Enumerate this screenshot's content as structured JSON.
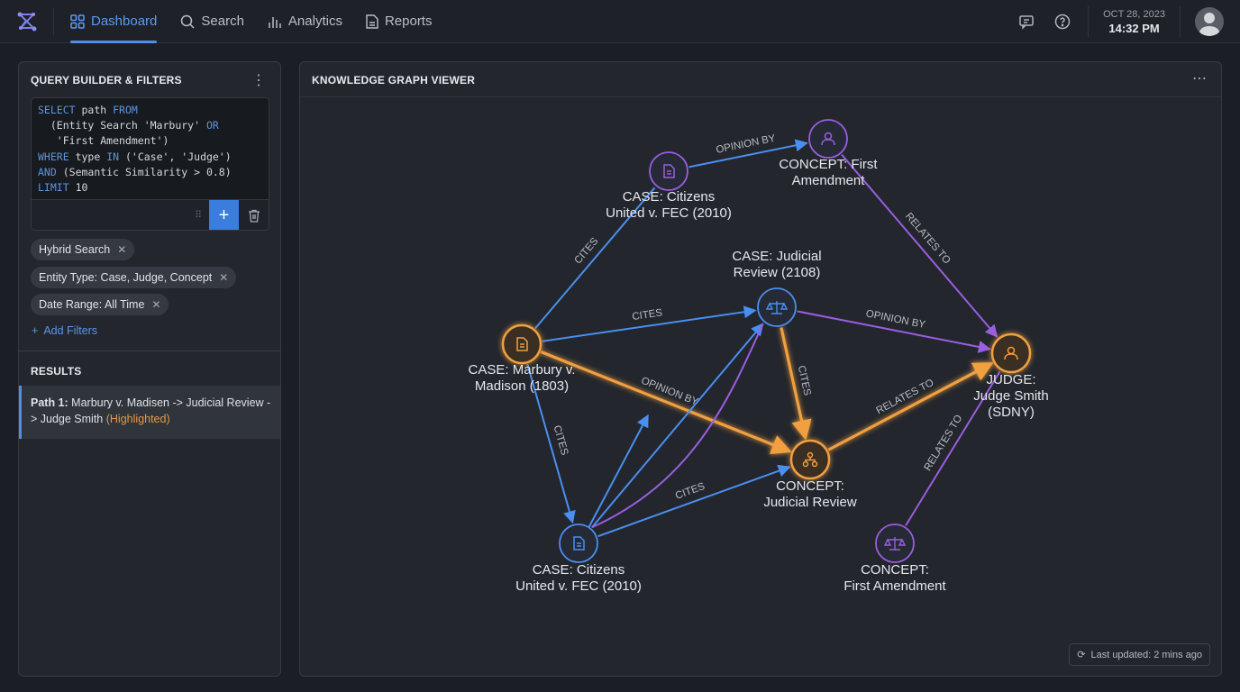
{
  "nav": {
    "items": [
      {
        "label": "Dashboard",
        "icon": "grid-icon",
        "active": true
      },
      {
        "label": "Search",
        "icon": "search-icon"
      },
      {
        "label": "Analytics",
        "icon": "bar-chart-icon"
      },
      {
        "label": "Reports",
        "icon": "document-icon"
      }
    ]
  },
  "header": {
    "date": "OCT 28, 2023",
    "time": "14:32 PM"
  },
  "query": {
    "title": "QUERY BUILDER & FILTERS",
    "code_lines": [
      [
        [
          "kw",
          "SELECT"
        ],
        [
          "",
          "path "
        ],
        [
          "kw",
          "FROM"
        ]
      ],
      [
        [
          "",
          "  (Entity Search 'Marbury' "
        ],
        [
          "kw",
          "OR"
        ]
      ],
      [
        [
          "",
          "   'First Amendment')"
        ]
      ],
      [
        [
          "kw",
          "WHERE"
        ],
        [
          "",
          "type "
        ],
        [
          "kw",
          "IN"
        ],
        [
          "",
          "('Case', 'Judge')"
        ]
      ],
      [
        [
          "kw",
          "AND"
        ],
        [
          "",
          "(Semantic Similarity > 0.8)"
        ]
      ],
      [
        [
          "kw",
          "LIMIT"
        ],
        [
          "",
          "10"
        ]
      ]
    ],
    "filters": [
      "Hybrid Search",
      "Entity Type: Case, Judge, Concept",
      "Date Range: All Time"
    ],
    "add_filters": "Add Filters"
  },
  "results": {
    "title": "RESULTS",
    "items": [
      {
        "prefix": "Path 1:",
        "text": " Marbury v. Madisen -> Judicial Review -> Judge Smith ",
        "tag": "(Highlighted)"
      }
    ]
  },
  "graph": {
    "title": "KNOWLEDGE GRAPH VIEWER",
    "last_updated": "Last updated: 2 mins ago",
    "colors": {
      "blue": "#4a8ff0",
      "purple": "#9a5ee0",
      "orange": "#f0a040"
    },
    "nodes": [
      {
        "id": "citizens_top",
        "lines": [
          "CASE: Citizens",
          "United v. FEC (2010)"
        ],
        "color": "purple",
        "icon": "document-icon"
      },
      {
        "id": "first_top",
        "lines": [
          "CONCEPT: First",
          "Amendment"
        ],
        "color": "purple",
        "icon": "user-icon"
      },
      {
        "id": "judicial_case",
        "lines": [
          "CASE: Judicial",
          "Review (2108)"
        ],
        "color": "blue",
        "icon": "scales-icon"
      },
      {
        "id": "marbury",
        "lines": [
          "CASE: Marbury v.",
          "Madison (1803)"
        ],
        "color": "orange",
        "icon": "document-icon",
        "highlighted": true
      },
      {
        "id": "judge",
        "lines": [
          "JUDGE:",
          "Judge Smith",
          "(SDNY)"
        ],
        "color": "orange",
        "icon": "user-icon",
        "highlighted": true
      },
      {
        "id": "concept_jr",
        "lines": [
          "CONCEPT:",
          "Judicial Review"
        ],
        "color": "orange",
        "icon": "hierarchy-icon",
        "highlighted": true
      },
      {
        "id": "citizens_bottom",
        "lines": [
          "CASE: Citizens",
          "United v. FEC (2010)"
        ],
        "color": "blue",
        "icon": "document-icon"
      },
      {
        "id": "first_bottom",
        "lines": [
          "CONCEPT:",
          "First Amendment"
        ],
        "color": "purple",
        "icon": "scales-icon"
      }
    ],
    "edges": [
      {
        "from": "citizens_top",
        "to": "first_top",
        "label": "OPINION BY",
        "color": "blue"
      },
      {
        "from": "first_top",
        "to": "judge",
        "label": "RELATES TO",
        "color": "purple"
      },
      {
        "from": "marbury",
        "to": "citizens_top",
        "label": "CITES",
        "color": "blue",
        "noarrow": true
      },
      {
        "from": "marbury",
        "to": "judicial_case",
        "label": "CITES",
        "color": "blue"
      },
      {
        "from": "judicial_case",
        "to": "judge",
        "label": "OPINION BY",
        "color": "purple"
      },
      {
        "from": "marbury",
        "to": "concept_jr",
        "label": "OPINION BY",
        "color": "orange",
        "highlighted": true
      },
      {
        "from": "judicial_case",
        "to": "concept_jr",
        "label": "CITES",
        "color": "orange",
        "highlighted": true
      },
      {
        "from": "concept_jr",
        "to": "judge",
        "label": "RELATES TO",
        "color": "orange",
        "highlighted": true
      },
      {
        "from": "marbury",
        "to": "citizens_bottom",
        "label": "CITES",
        "color": "blue"
      },
      {
        "from": "citizens_bottom",
        "to": "judicial_case",
        "label": "",
        "color": "blue"
      },
      {
        "from": "citizens_bottom",
        "to": "concept_jr",
        "label": "CITES",
        "color": "blue"
      },
      {
        "from": "citizens_bottom",
        "to": "judicial_case",
        "label": "",
        "color": "purple",
        "curved": true,
        "noarrow": true
      },
      {
        "from": "first_bottom",
        "to": "judge",
        "label": "RELATES TO",
        "color": "purple",
        "noarrow": true
      }
    ]
  }
}
